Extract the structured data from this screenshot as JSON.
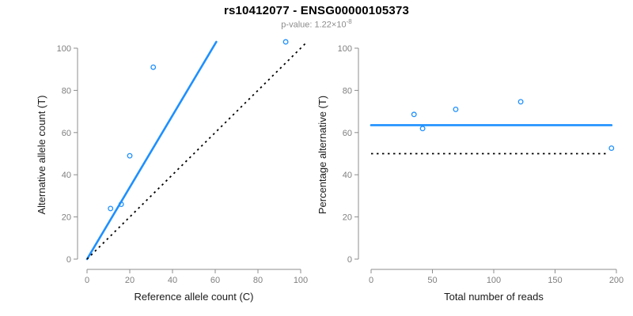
{
  "header": {
    "title": "rs10412077 - ENSG00000105373",
    "pvalue_label": "p-value: ",
    "pvalue_base": "1.22×10",
    "pvalue_exponent": "-8"
  },
  "colors": {
    "accent_blue": "#1E90FF",
    "line_black": "#000000",
    "axis_gray": "#8C8C8C",
    "tick_label_gray": "#7F7F7F",
    "axis_title_dark": "#1A1A1A",
    "subtitle_gray": "#8C8C8C"
  },
  "chart_data": [
    {
      "type": "scatter",
      "name": "allele-counts-panel",
      "xlabel": "Reference allele count (C)",
      "ylabel": "Alternative allele count (T)",
      "xlim": [
        0,
        100
      ],
      "ylim": [
        0,
        100
      ],
      "xticks": [
        0,
        20,
        40,
        60,
        80,
        100
      ],
      "yticks": [
        0,
        20,
        40,
        60,
        80,
        100
      ],
      "grid": false,
      "points": [
        [
          11,
          24
        ],
        [
          16,
          26
        ],
        [
          20,
          49
        ],
        [
          31,
          91
        ],
        [
          93,
          103
        ]
      ],
      "lines": [
        {
          "name": "fitted-ratio-line",
          "style": "solid",
          "color": "#1E90FF",
          "from": [
            0,
            0
          ],
          "to": [
            60.5,
            103
          ]
        },
        {
          "name": "identity-line",
          "style": "dotted",
          "color": "#000000",
          "from": [
            0,
            0
          ],
          "to": [
            103,
            103
          ]
        }
      ]
    },
    {
      "type": "scatter",
      "name": "percentage-panel",
      "xlabel": "Total number of reads",
      "ylabel": "Percentage alternative (T)",
      "xlim": [
        0,
        200
      ],
      "ylim": [
        0,
        100
      ],
      "xticks": [
        0,
        50,
        100,
        150,
        200
      ],
      "yticks": [
        0,
        20,
        40,
        60,
        80,
        100
      ],
      "grid": false,
      "points": [
        [
          35,
          68.6
        ],
        [
          42,
          61.9
        ],
        [
          69,
          71.0
        ],
        [
          122,
          74.6
        ],
        [
          196,
          52.6
        ]
      ],
      "lines": [
        {
          "name": "mean-percentage-line",
          "style": "solid",
          "color": "#1E90FF",
          "from": [
            0,
            63.5
          ],
          "to": [
            196,
            63.5
          ]
        },
        {
          "name": "null-50-percent-line",
          "style": "dotted",
          "color": "#000000",
          "from": [
            0,
            50
          ],
          "to": [
            192,
            50
          ]
        }
      ]
    }
  ]
}
